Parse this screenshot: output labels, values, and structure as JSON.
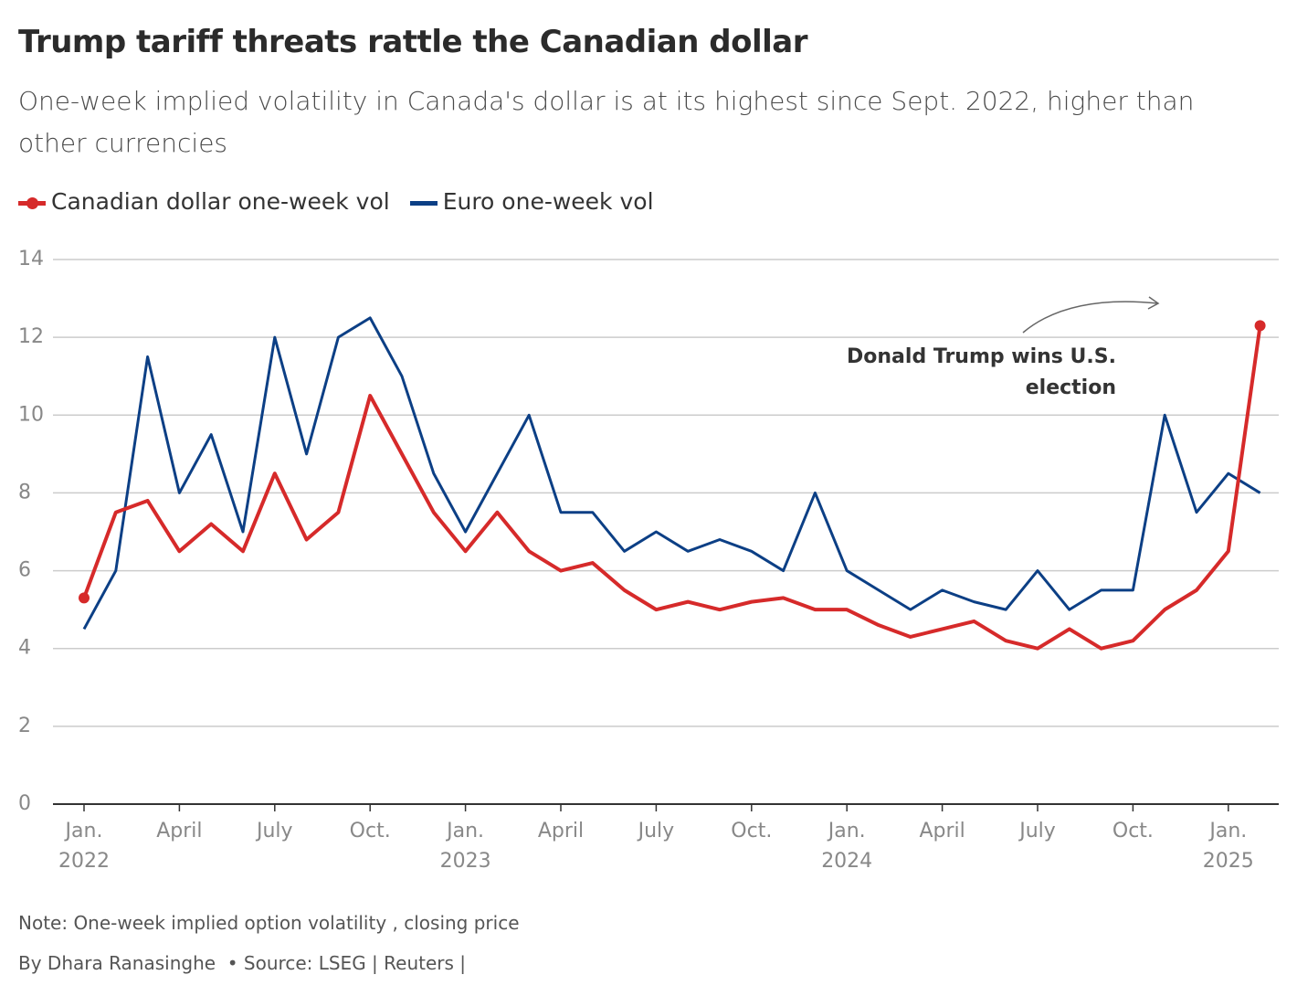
{
  "chart_data": {
    "type": "line",
    "title": "Trump tariff threats rattle the Canadian dollar",
    "subtitle": "One-week implied volatility in Canada's dollar is at its highest since Sept. 2022, higher than other currencies",
    "x": [
      "2022-01",
      "2022-02",
      "2022-03",
      "2022-04",
      "2022-05",
      "2022-06",
      "2022-07",
      "2022-08",
      "2022-09",
      "2022-10",
      "2022-11",
      "2022-12",
      "2023-01",
      "2023-02",
      "2023-03",
      "2023-04",
      "2023-05",
      "2023-06",
      "2023-07",
      "2023-08",
      "2023-09",
      "2023-10",
      "2023-11",
      "2023-12",
      "2024-01",
      "2024-02",
      "2024-03",
      "2024-04",
      "2024-05",
      "2024-06",
      "2024-07",
      "2024-08",
      "2024-09",
      "2024-10",
      "2024-11",
      "2024-12",
      "2025-01",
      "2025-02"
    ],
    "series": [
      {
        "name": "Canadian dollar one-week vol",
        "color": "#d62a2a",
        "values": [
          5.3,
          7.5,
          7.8,
          6.5,
          7.2,
          6.5,
          8.5,
          6.8,
          7.5,
          10.5,
          9.0,
          7.5,
          6.5,
          7.5,
          6.5,
          6.0,
          6.2,
          5.5,
          5.0,
          5.2,
          5.0,
          5.2,
          5.3,
          5.0,
          5.0,
          4.6,
          4.3,
          4.5,
          4.7,
          4.2,
          4.0,
          4.5,
          4.0,
          4.2,
          5.0,
          5.5,
          6.5,
          12.3
        ]
      },
      {
        "name": "Euro one-week vol",
        "color": "#0c3f85",
        "values": [
          4.5,
          6.0,
          11.5,
          8.0,
          9.5,
          7.0,
          12.0,
          9.0,
          12.0,
          12.5,
          11.0,
          8.5,
          7.0,
          8.5,
          10.0,
          7.5,
          7.5,
          6.5,
          7.0,
          6.5,
          6.8,
          6.5,
          6.0,
          8.0,
          6.0,
          5.5,
          5.0,
          5.5,
          5.2,
          5.0,
          6.0,
          5.0,
          5.5,
          5.5,
          10.0,
          7.5,
          8.5,
          8.0
        ]
      }
    ],
    "ylim": [
      0,
      14
    ],
    "yticks": [
      0,
      2,
      4,
      6,
      8,
      10,
      12,
      14
    ],
    "grid": true,
    "xticks": [
      {
        "value": "2022-01",
        "label": "Jan.",
        "year": "2022"
      },
      {
        "value": "2022-04",
        "label": "April"
      },
      {
        "value": "2022-07",
        "label": "July"
      },
      {
        "value": "2022-10",
        "label": "Oct."
      },
      {
        "value": "2023-01",
        "label": "Jan.",
        "year": "2023"
      },
      {
        "value": "2023-04",
        "label": "April"
      },
      {
        "value": "2023-07",
        "label": "July"
      },
      {
        "value": "2023-10",
        "label": "Oct."
      },
      {
        "value": "2024-01",
        "label": "Jan.",
        "year": "2024"
      },
      {
        "value": "2024-04",
        "label": "April"
      },
      {
        "value": "2024-07",
        "label": "July"
      },
      {
        "value": "2024-10",
        "label": "Oct."
      },
      {
        "value": "2025-01",
        "label": "Jan.",
        "year": "2025"
      }
    ],
    "annotation": "Donald Trump wins U.S. election",
    "note": "Note: One-week implied option volatility , closing price",
    "byline": "By Dhara Ranasinghe",
    "source": "• Source: LSEG | Reuters |"
  }
}
